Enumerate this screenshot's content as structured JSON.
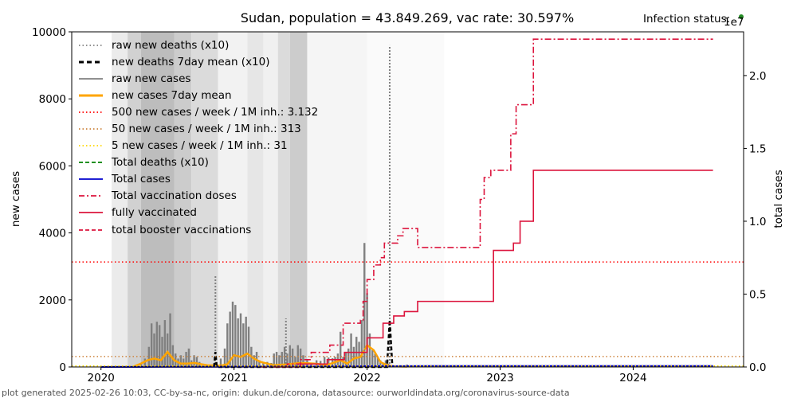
{
  "header": {
    "title": "Sudan, population = 43.849.269, vac rate: 30.597%",
    "infection_status_label": "Infection status:",
    "infection_status_color": "#228b22"
  },
  "footer": {
    "text": "plot generated 2025-02-26 10:03, CC-by-sa-nc, origin: dukun.de/corona, datasource: ourworldindata.org/coronavirus-source-data"
  },
  "chart_data": {
    "type": "line",
    "title": "Sudan, population = 43.849.269, vac rate: 30.597%",
    "xlabel": "",
    "ylabel_left": "new cases",
    "ylabel_right": "total cases",
    "right_axis_multiplier": "1e7",
    "xlim": [
      2019.78,
      2024.83
    ],
    "ylim_left": [
      0,
      10000
    ],
    "ylim_right": [
      0,
      2.3
    ],
    "x_ticks": [
      {
        "value": 2020,
        "label": "2020"
      },
      {
        "value": 2021,
        "label": "2021"
      },
      {
        "value": 2022,
        "label": "2022"
      },
      {
        "value": 2023,
        "label": "2023"
      },
      {
        "value": 2024,
        "label": "2024"
      }
    ],
    "y_ticks_left": [
      {
        "value": 0,
        "label": "0"
      },
      {
        "value": 2000,
        "label": "2000"
      },
      {
        "value": 4000,
        "label": "4000"
      },
      {
        "value": 6000,
        "label": "6000"
      },
      {
        "value": 8000,
        "label": "8000"
      },
      {
        "value": 10000,
        "label": "10000"
      }
    ],
    "y_ticks_right": [
      {
        "value": 0.0,
        "label": "0.0"
      },
      {
        "value": 0.5,
        "label": "0.5"
      },
      {
        "value": 1.0,
        "label": "1.0"
      },
      {
        "value": 1.5,
        "label": "1.5"
      },
      {
        "value": 2.0,
        "label": "2.0"
      }
    ],
    "grid": false,
    "legend_position": "top-left",
    "legend": [
      {
        "label": "raw new deaths (x10)",
        "color": "#808080",
        "style": "dotted"
      },
      {
        "label": "new deaths 7day mean (x10)",
        "color": "#000000",
        "style": "dashed-thick"
      },
      {
        "label": "raw new cases",
        "color": "#808080",
        "style": "solid"
      },
      {
        "label": "new cases 7day mean",
        "color": "#ffa500",
        "style": "solid-thick"
      },
      {
        "label": "500 new cases / week / 1M inh.: 3.132",
        "color": "#ff0000",
        "style": "dotted"
      },
      {
        "label": "50 new cases / week / 1M inh.: 313",
        "color": "#cd853f",
        "style": "dotted"
      },
      {
        "label": "5 new cases / week / 1M inh.: 31",
        "color": "#ffd700",
        "style": "dotted"
      },
      {
        "label": "Total deaths (x10)",
        "color": "#008000",
        "style": "dashed"
      },
      {
        "label": "Total cases",
        "color": "#0000cd",
        "style": "solid"
      },
      {
        "label": "Total vaccination doses",
        "color": "#dc143c",
        "style": "dashdot"
      },
      {
        "label": "fully vaccinated",
        "color": "#dc143c",
        "style": "solid"
      },
      {
        "label": "total booster vaccinations",
        "color": "#dc143c",
        "style": "dashed"
      }
    ],
    "thresholds": [
      {
        "name": "500 per week per 1M",
        "value": 3132,
        "color": "#ff0000"
      },
      {
        "name": "50 per week per 1M",
        "value": 313,
        "color": "#cd853f"
      },
      {
        "name": "5 per week per 1M",
        "value": 31,
        "color": "#ffd700"
      }
    ],
    "background_bands": [
      {
        "x0": 2020.08,
        "x1": 2020.2,
        "shade": 0.92
      },
      {
        "x0": 2020.2,
        "x1": 2020.3,
        "shade": 0.82
      },
      {
        "x0": 2020.3,
        "x1": 2020.55,
        "shade": 0.74
      },
      {
        "x0": 2020.55,
        "x1": 2020.68,
        "shade": 0.8
      },
      {
        "x0": 2020.68,
        "x1": 2020.88,
        "shade": 0.86
      },
      {
        "x0": 2020.88,
        "x1": 2021.1,
        "shade": 0.95
      },
      {
        "x0": 2021.1,
        "x1": 2021.22,
        "shade": 0.9
      },
      {
        "x0": 2021.22,
        "x1": 2021.33,
        "shade": 0.94
      },
      {
        "x0": 2021.33,
        "x1": 2021.42,
        "shade": 0.86
      },
      {
        "x0": 2021.42,
        "x1": 2021.55,
        "shade": 0.8
      },
      {
        "x0": 2021.55,
        "x1": 2022.0,
        "shade": 0.96
      },
      {
        "x0": 2022.0,
        "x1": 2022.58,
        "shade": 0.98
      }
    ],
    "series": [
      {
        "name": "raw new cases",
        "axis": "left",
        "type": "bars",
        "color": "#808080",
        "x": [
          2020.3,
          2020.33,
          2020.36,
          2020.38,
          2020.4,
          2020.42,
          2020.44,
          2020.46,
          2020.48,
          2020.5,
          2020.52,
          2020.54,
          2020.56,
          2020.58,
          2020.6,
          2020.62,
          2020.64,
          2020.66,
          2020.68,
          2020.7,
          2020.72,
          2020.74,
          2020.76,
          2020.78,
          2020.82,
          2020.86,
          2020.9,
          2020.93,
          2020.95,
          2020.97,
          2020.99,
          2021.01,
          2021.03,
          2021.05,
          2021.07,
          2021.09,
          2021.11,
          2021.13,
          2021.15,
          2021.17,
          2021.19,
          2021.22,
          2021.25,
          2021.28,
          2021.3,
          2021.32,
          2021.34,
          2021.36,
          2021.38,
          2021.4,
          2021.42,
          2021.44,
          2021.46,
          2021.48,
          2021.5,
          2021.52,
          2021.55,
          2021.58,
          2021.62,
          2021.65,
          2021.68,
          2021.71,
          2021.74,
          2021.76,
          2021.78,
          2021.8,
          2021.82,
          2021.84,
          2021.86,
          2021.88,
          2021.9,
          2021.92,
          2021.94,
          2021.96,
          2021.98,
          2022.0,
          2022.02,
          2022.04,
          2022.06,
          2022.08,
          2022.1,
          2022.12,
          2022.14,
          2022.16,
          2022.18,
          2022.2,
          2022.25,
          2022.3,
          2022.4,
          2022.5,
          2022.6
        ],
        "values": [
          100,
          250,
          600,
          1300,
          1000,
          1350,
          1250,
          900,
          1400,
          1000,
          1600,
          650,
          400,
          250,
          350,
          250,
          450,
          550,
          200,
          350,
          300,
          150,
          40,
          20,
          60,
          150,
          250,
          550,
          1300,
          1650,
          1950,
          1850,
          1450,
          1600,
          1300,
          1500,
          1200,
          600,
          350,
          450,
          200,
          150,
          150,
          120,
          400,
          450,
          350,
          450,
          600,
          400,
          650,
          550,
          300,
          650,
          550,
          350,
          200,
          100,
          200,
          180,
          300,
          280,
          260,
          300,
          400,
          1050,
          300,
          450,
          550,
          1000,
          600,
          900,
          750,
          1400,
          3700,
          2200,
          1000,
          500,
          400,
          300,
          200,
          100,
          200,
          100,
          60,
          50,
          50,
          70,
          50,
          40,
          30
        ]
      },
      {
        "name": "new cases 7day mean",
        "axis": "left",
        "type": "line",
        "color": "#ffa500",
        "x": [
          2020.25,
          2020.3,
          2020.35,
          2020.4,
          2020.45,
          2020.5,
          2020.55,
          2020.6,
          2020.65,
          2020.7,
          2020.8,
          2020.9,
          2020.95,
          2021.0,
          2021.05,
          2021.1,
          2021.15,
          2021.2,
          2021.3,
          2021.4,
          2021.5,
          2021.6,
          2021.7,
          2021.8,
          2021.85,
          2021.9,
          2021.95,
          2022.0,
          2022.05,
          2022.1,
          2022.15,
          2022.2,
          2022.3
        ],
        "values": [
          20,
          100,
          200,
          250,
          200,
          450,
          200,
          100,
          100,
          120,
          50,
          40,
          80,
          350,
          300,
          400,
          250,
          150,
          50,
          80,
          120,
          100,
          60,
          200,
          100,
          250,
          300,
          650,
          500,
          150,
          50,
          20,
          10
        ]
      },
      {
        "name": "raw new deaths (x10)",
        "axis": "left",
        "type": "spikes",
        "color": "#808080",
        "x": [
          2020.86,
          2021.39,
          2021.98,
          2022.17
        ],
        "values": [
          2750,
          1450,
          2200,
          9600
        ]
      },
      {
        "name": "new deaths 7day mean (x10)",
        "axis": "left",
        "type": "line",
        "color": "#000000",
        "x": [
          2020.85,
          2020.86,
          2020.87,
          2022.15,
          2022.17,
          2022.19
        ],
        "values": [
          0,
          450,
          0,
          0,
          1400,
          0
        ]
      },
      {
        "name": "Total cases",
        "axis": "right",
        "type": "line",
        "color": "#0000cd",
        "x": [
          2020.0,
          2020.5,
          2021.0,
          2021.5,
          2022.0,
          2022.5,
          2024.6
        ],
        "values": [
          0.0,
          0.001,
          0.002,
          0.003,
          0.005,
          0.006,
          0.0064
        ]
      },
      {
        "name": "Total vaccination doses",
        "axis": "right",
        "type": "step",
        "color": "#dc143c",
        "x": [
          2021.2,
          2021.4,
          2021.5,
          2021.58,
          2021.72,
          2021.82,
          2021.95,
          2021.97,
          2022.0,
          2022.05,
          2022.1,
          2022.13,
          2022.2,
          2022.23,
          2022.27,
          2022.38,
          2022.85,
          2022.88,
          2022.93,
          2023.08,
          2023.12,
          2023.25,
          2024.6
        ],
        "values": [
          0.0,
          0.02,
          0.05,
          0.1,
          0.15,
          0.3,
          0.32,
          0.45,
          0.6,
          0.7,
          0.75,
          0.85,
          0.85,
          0.9,
          0.95,
          0.82,
          1.15,
          1.3,
          1.35,
          1.6,
          1.8,
          2.25,
          2.25
        ]
      },
      {
        "name": "fully vaccinated",
        "axis": "right",
        "type": "step",
        "color": "#dc143c",
        "x": [
          2021.3,
          2021.5,
          2021.7,
          2021.83,
          2022.0,
          2022.12,
          2022.2,
          2022.28,
          2022.38,
          2022.85,
          2022.95,
          2023.1,
          2023.15,
          2023.25,
          2024.6
        ],
        "values": [
          0.0,
          0.02,
          0.05,
          0.1,
          0.2,
          0.3,
          0.35,
          0.38,
          0.45,
          0.45,
          0.8,
          0.85,
          1.0,
          1.35,
          1.35
        ]
      }
    ]
  }
}
